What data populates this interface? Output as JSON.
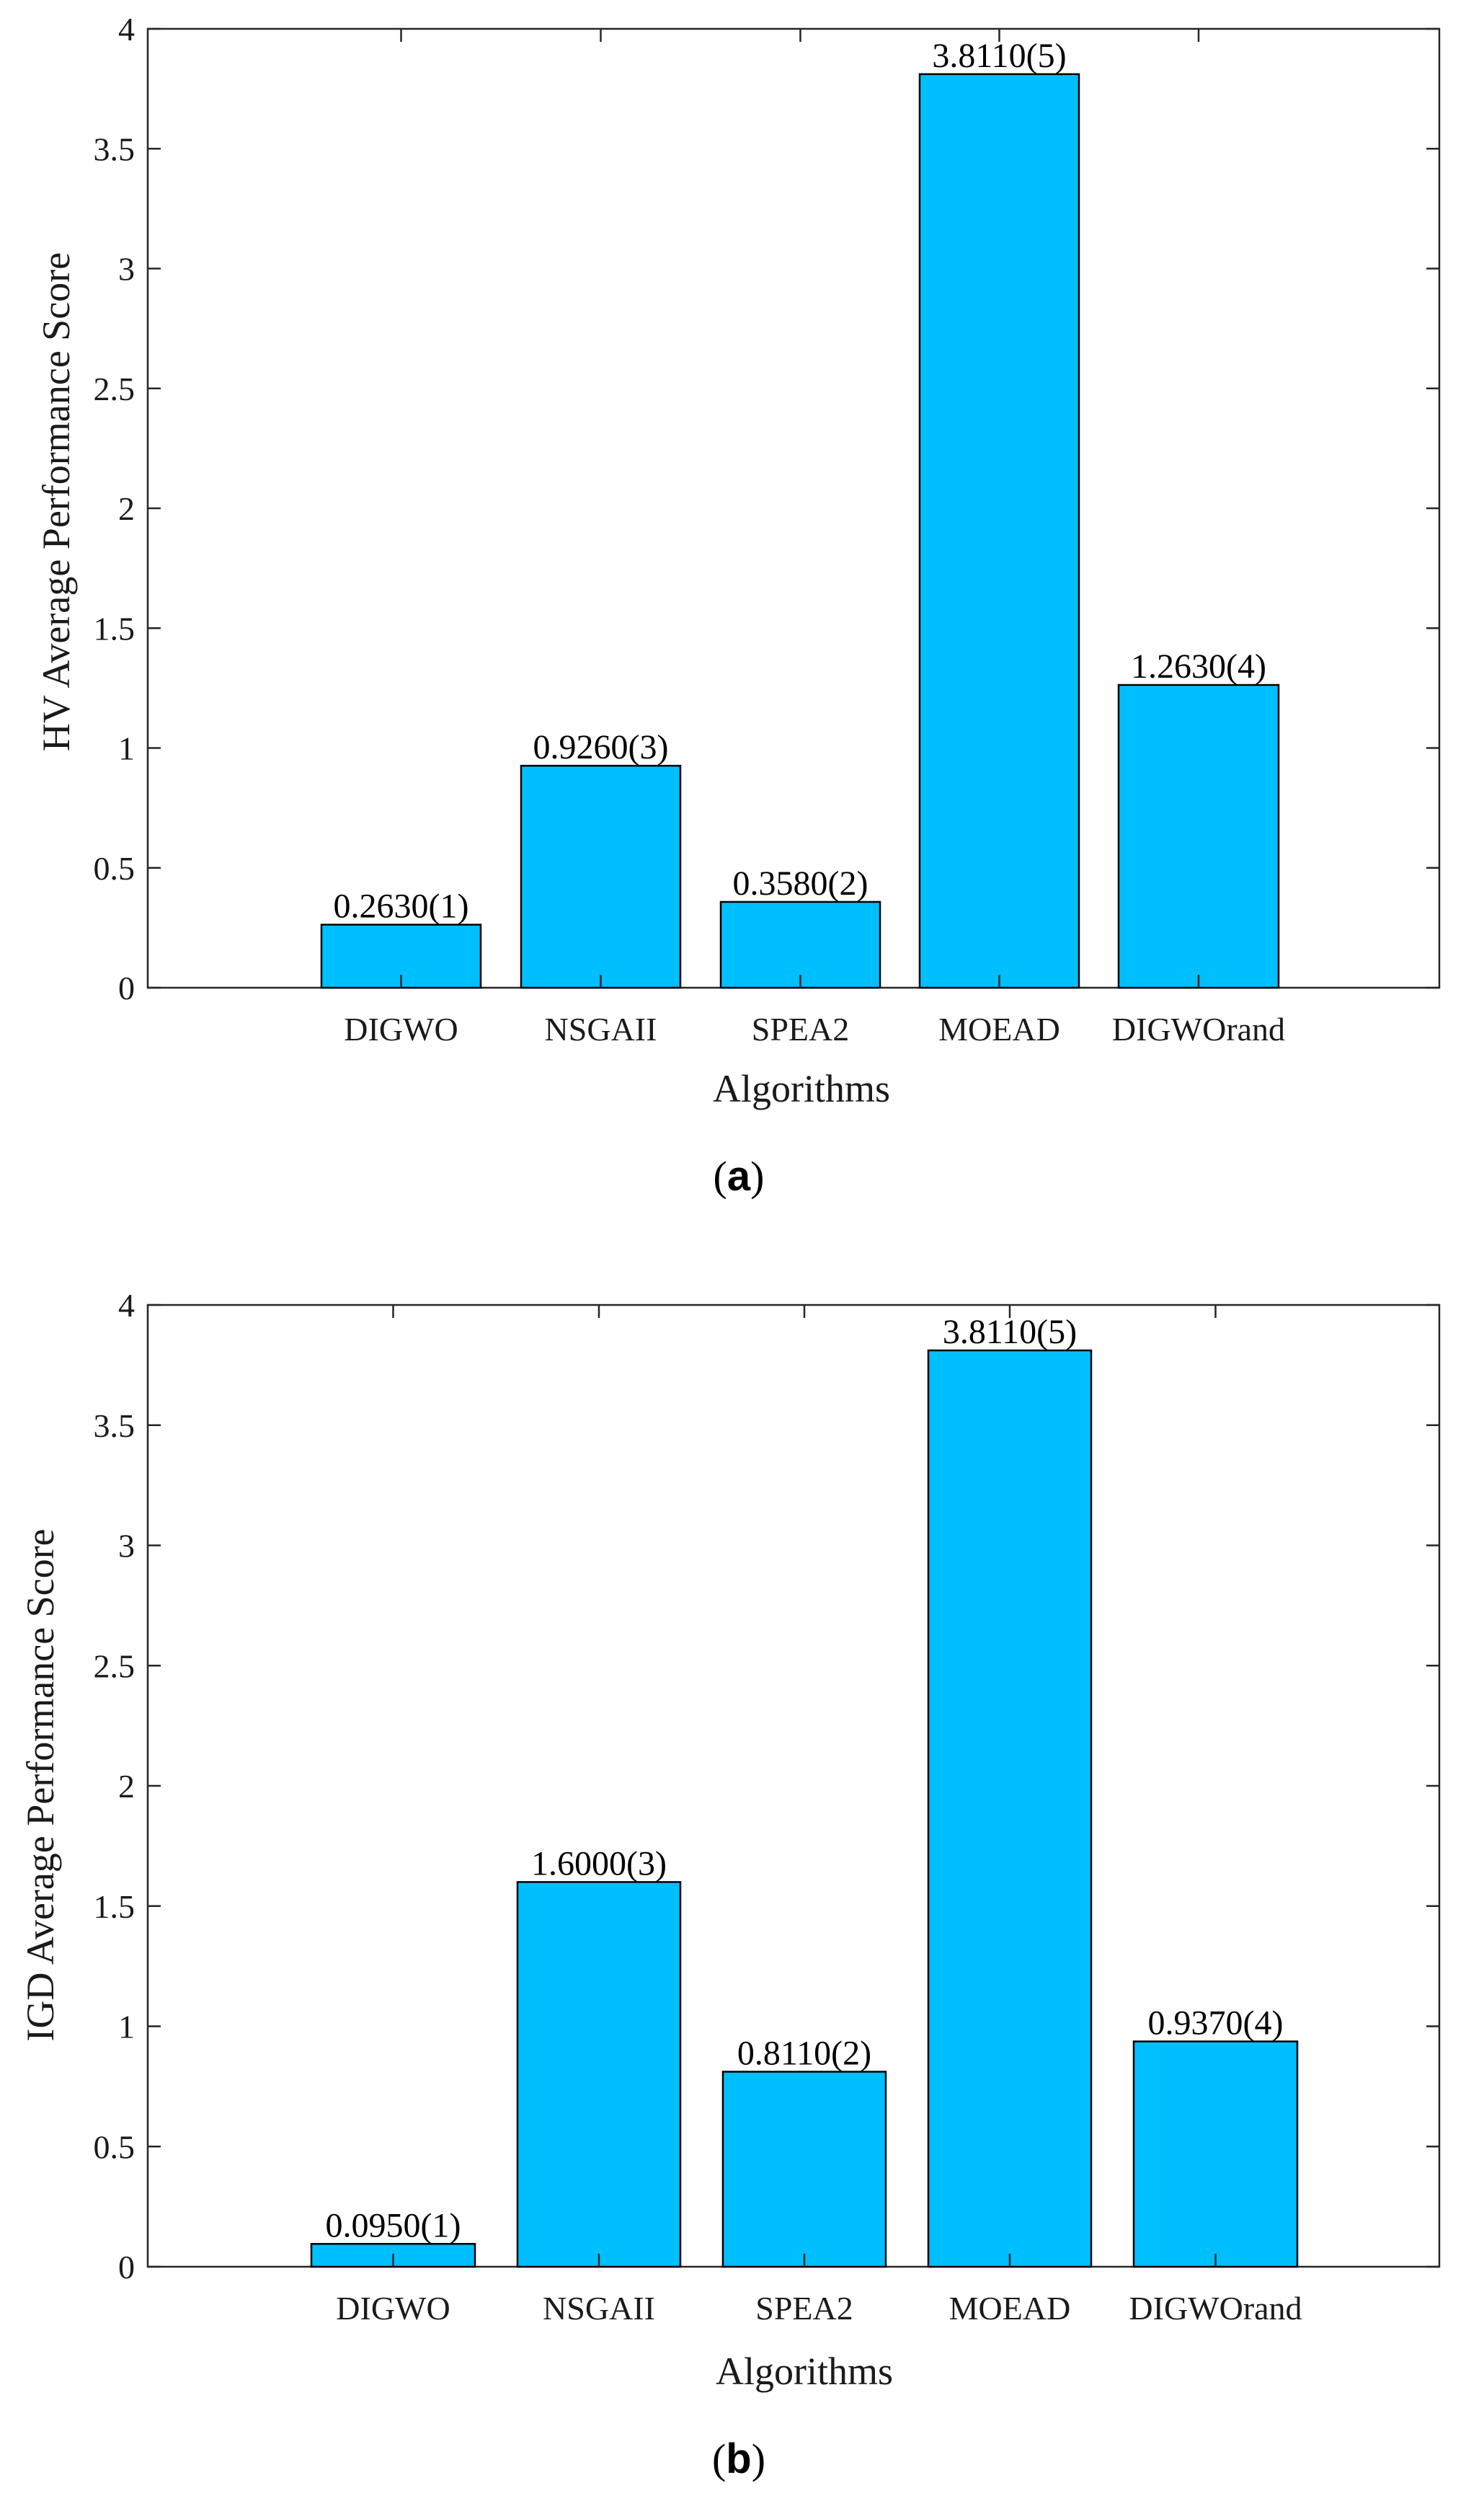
{
  "bar_color": "#00BFFF",
  "axis_color": "#262626",
  "chart_data": [
    {
      "type": "bar",
      "panel_label": "a",
      "categories": [
        "DIGWO",
        "NSGAII",
        "SPEA2",
        "MOEAD",
        "DIGWOrand"
      ],
      "values": [
        0.263,
        0.926,
        0.358,
        3.811,
        1.263
      ],
      "data_labels": [
        "0.2630(1)",
        "0.9260(3)",
        "0.3580(2)",
        "3.8110(5)",
        "1.2630(4)"
      ],
      "xlabel": "Algorithms",
      "ylabel": "HV Average Performance Score",
      "ylim": [
        0,
        4
      ],
      "yticks": [
        "0",
        "0.5",
        "1",
        "1.5",
        "2",
        "2.5",
        "3",
        "3.5",
        "4"
      ],
      "grid": false
    },
    {
      "type": "bar",
      "panel_label": "b",
      "categories": [
        "DIGWO",
        "NSGAII",
        "SPEA2",
        "MOEAD",
        "DIGWOrand"
      ],
      "values": [
        0.095,
        1.6,
        0.811,
        3.811,
        0.937
      ],
      "data_labels": [
        "0.0950(1)",
        "1.6000(3)",
        "0.8110(2)",
        "3.8110(5)",
        "0.9370(4)"
      ],
      "xlabel": "Algorithms",
      "ylabel": "IGD Average Performance Score",
      "ylim": [
        0,
        4
      ],
      "yticks": [
        "0",
        "0.5",
        "1",
        "1.5",
        "2",
        "2.5",
        "3",
        "3.5",
        "4"
      ],
      "grid": false
    }
  ]
}
